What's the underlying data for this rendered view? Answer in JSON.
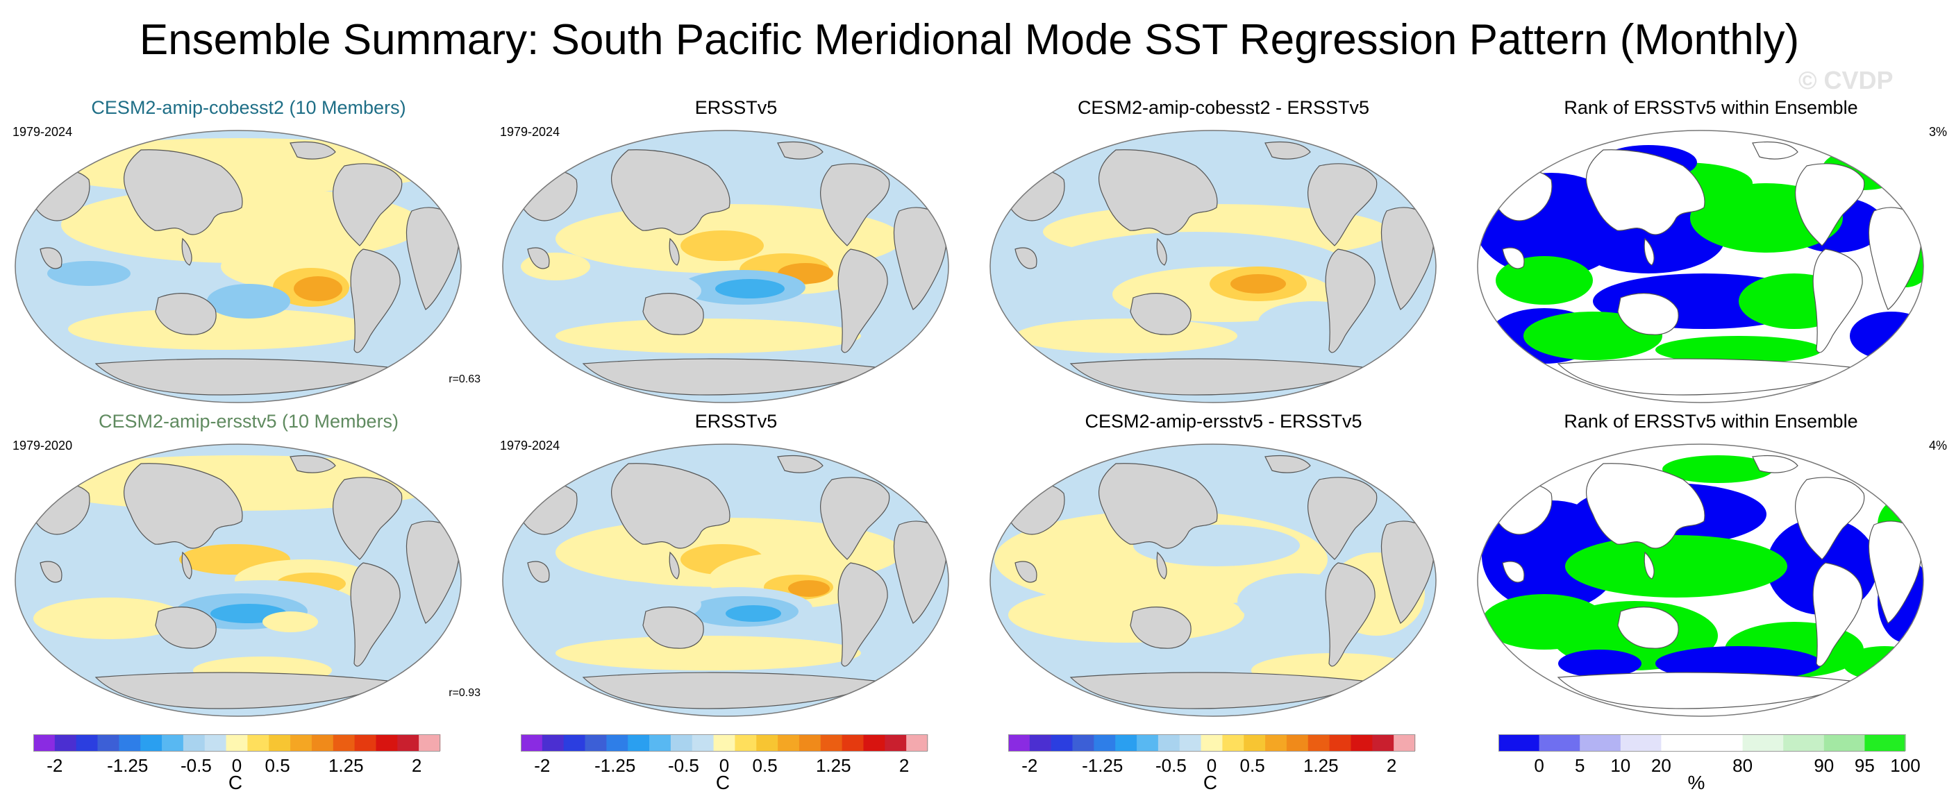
{
  "title": "Ensemble Summary: South Pacific Meridional Mode SST Regression Pattern (Monthly)",
  "watermark": "© CVDP",
  "panels": [
    {
      "id": "p1",
      "title": "CESM2-amip-cobesst2 (10 Members)",
      "title_color": "#1e6e86",
      "period": "1979-2024",
      "corr": "r=0.63",
      "pct": "",
      "kind": "sst"
    },
    {
      "id": "p2",
      "title": "ERSSTv5",
      "title_color": "#000000",
      "period": "1979-2024",
      "corr": "",
      "pct": "",
      "kind": "sst"
    },
    {
      "id": "p3",
      "title": "CESM2-amip-cobesst2 - ERSSTv5",
      "title_color": "#000000",
      "period": "",
      "corr": "",
      "pct": "",
      "kind": "diff"
    },
    {
      "id": "p4",
      "title": "Rank of ERSSTv5 within Ensemble",
      "title_color": "#000000",
      "period": "",
      "corr": "",
      "pct": "3%",
      "kind": "rank"
    },
    {
      "id": "p5",
      "title": "CESM2-amip-ersstv5 (10 Members)",
      "title_color": "#5f8a5f",
      "period": "1979-2020",
      "corr": "r=0.93",
      "pct": "",
      "kind": "sst"
    },
    {
      "id": "p6",
      "title": "ERSSTv5",
      "title_color": "#000000",
      "period": "1979-2024",
      "corr": "",
      "pct": "",
      "kind": "sst"
    },
    {
      "id": "p7",
      "title": "CESM2-amip-ersstv5 - ERSSTv5",
      "title_color": "#000000",
      "period": "",
      "corr": "",
      "pct": "",
      "kind": "diff"
    },
    {
      "id": "p8",
      "title": "Rank of ERSSTv5 within Ensemble",
      "title_color": "#000000",
      "period": "",
      "corr": "",
      "pct": "4%",
      "kind": "rank"
    }
  ],
  "colorbar_sst": {
    "colors": [
      "#8a2be2",
      "#4b2fd1",
      "#2b3ee0",
      "#3c5fd6",
      "#2e7ee8",
      "#2a9ff0",
      "#58b8f2",
      "#a9d3ef",
      "#c4e0f2",
      "#fff7b0",
      "#ffdf5c",
      "#f7c532",
      "#f5a623",
      "#f08a1a",
      "#eb5e12",
      "#e53a0f",
      "#d81410",
      "#c91f2e",
      "#f4a9ae"
    ],
    "labels": [
      "-2",
      "-1.25",
      "-0.5",
      "0",
      "0.5",
      "1.25",
      "2"
    ],
    "unit": "C"
  },
  "colorbar_rank": {
    "colors": [
      "#1111ee",
      "#6f6ff0",
      "#b3b3f4",
      "#e2e2fa",
      "#ffffff",
      "#ffffff",
      "#e3f7e3",
      "#c6f0c6",
      "#a3e8a3",
      "#22ee22"
    ],
    "labels": [
      "0",
      "5",
      "10",
      "20",
      "80",
      "90",
      "95",
      "100"
    ],
    "unit": "%"
  },
  "legend_colors": {
    "land": "#d3d3d3",
    "pos_weak": "#fff3a6",
    "pos_mid": "#ffd24d",
    "pos_strong": "#f5a623",
    "neg_weak": "#c4e0f2",
    "neg_mid": "#8ccaf0",
    "neg_strong": "#3fb0ee",
    "rank_low": "#0000f5",
    "rank_high": "#00f000"
  }
}
